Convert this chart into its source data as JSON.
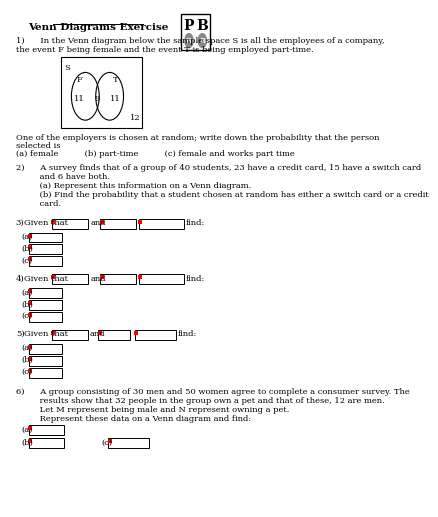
{
  "title": "Venn Diagrams Exercise",
  "bg_color": "#ffffff",
  "text_color": "#000000",
  "q1_line1": "1)      In the Venn diagram below the sample space S is all the employees of a company,",
  "q1_line2": "the event F being female and the event T is being employed part-time.",
  "venn_f_label": "F",
  "venn_t_label": "T",
  "venn_f_only": "11",
  "venn_both": "9",
  "venn_t_only": "11",
  "venn_outside": "12",
  "venn_s_label": "S",
  "q1_sub_line1": "One of the employers is chosen at random; write down the probability that the person",
  "q1_sub_line2": "selected is",
  "q1_sub_line3": "(a) female          (b) part-time          (c) female and works part time",
  "q2_line1": "2)      A survey finds that of a group of 40 students, 23 have a credit card, 15 have a switch card",
  "q2_line2": "         and 6 have both.",
  "q2_line3": "         (a) Represent this information on a Venn diagram.",
  "q2_line4": "         (b) Find the probability that a student chosen at random has either a switch card or a credit",
  "q2_line5": "         card.",
  "q3_label": "3)",
  "q3_given": "Given that",
  "q3_and": "and",
  "q3_find": "find:",
  "q3_abc": [
    "(a)",
    "(b)",
    "(c)"
  ],
  "q4_label": "4)",
  "q4_given": "Given that",
  "q4_and": "and",
  "q4_find": "find:",
  "q4_abc": [
    "(a)",
    "(b)",
    "(c)"
  ],
  "q5_label": "5)",
  "q5_given": "Given that",
  "q5_and": "and",
  "q5_find": "find:",
  "q5_abc": [
    "(a)",
    "(b)",
    "(c)"
  ],
  "q6_line1": "6)      A group consisting of 30 men and 50 women agree to complete a consumer survey. The",
  "q6_line2": "         results show that 32 people in the group own a pet and that of these, 12 are men.",
  "q6_line3": "         Let M represent being male and N represent owning a pet.",
  "q6_line4": "         Represent these data on a Venn diagram and find:",
  "q6_abc": [
    "(a)",
    "(b)",
    "(c)"
  ]
}
